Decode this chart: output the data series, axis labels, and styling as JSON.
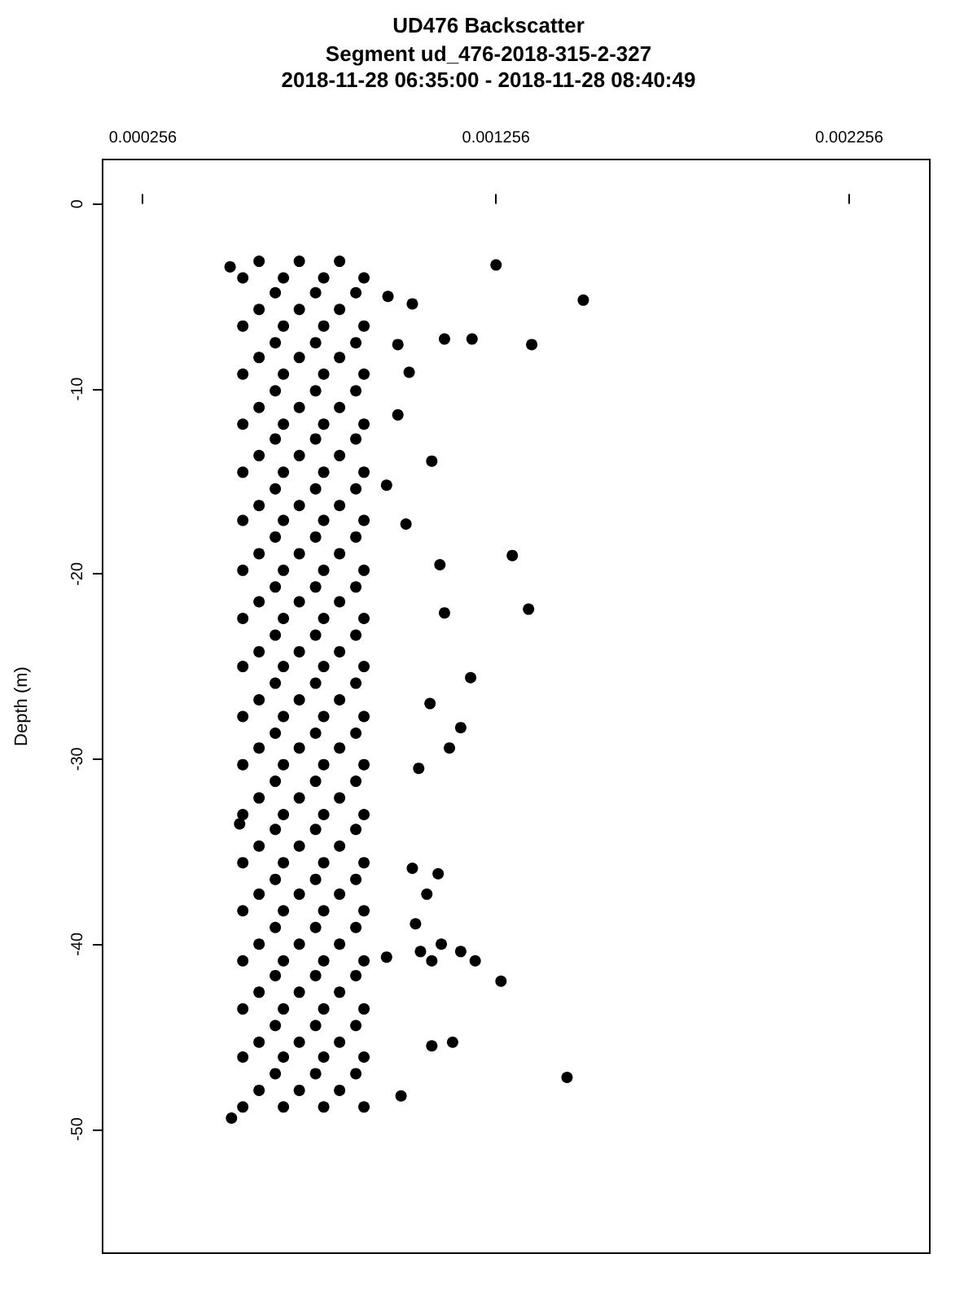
{
  "chart_data": {
    "type": "scatter",
    "title": "UD476 Backscatter",
    "subtitle": "Segment ud_476-2018-315-2-327\n2018-11-28 06:35:00 - 2018-11-28 08:40:49",
    "ylabel": "Depth (m)",
    "xlim": [
      0.000142,
      0.002484
    ],
    "xticks": [
      0.000256,
      0.001256,
      0.002256
    ],
    "ylim": [
      -56.7,
      2.4
    ],
    "yticks": [
      0,
      -10,
      -20,
      -30,
      -40,
      -50
    ],
    "grid": false,
    "marker": "circle",
    "series": [
      {
        "color": "#000000",
        "x": [
          0.000585,
          0.000699,
          0.000813,
          0.000539,
          0.000654,
          0.000768,
          0.000882,
          0.000631,
          0.000745,
          0.000859,
          0.000585,
          0.000699,
          0.000813,
          0.000539,
          0.000654,
          0.000768,
          0.000882,
          0.000631,
          0.000745,
          0.000859,
          0.000585,
          0.000699,
          0.000813,
          0.000539,
          0.000654,
          0.000768,
          0.000882,
          0.000631,
          0.000745,
          0.000859,
          0.000585,
          0.000699,
          0.000813,
          0.000539,
          0.000654,
          0.000768,
          0.000882,
          0.000631,
          0.000745,
          0.000859,
          0.000585,
          0.000699,
          0.000813,
          0.000539,
          0.000654,
          0.000768,
          0.000882,
          0.000631,
          0.000745,
          0.000859,
          0.000585,
          0.000699,
          0.000813,
          0.000539,
          0.000654,
          0.000768,
          0.000882,
          0.000631,
          0.000745,
          0.000859,
          0.000585,
          0.000699,
          0.000813,
          0.000539,
          0.000654,
          0.000768,
          0.000882,
          0.000631,
          0.000745,
          0.000859,
          0.000585,
          0.000699,
          0.000813,
          0.000539,
          0.000654,
          0.000768,
          0.000882,
          0.000631,
          0.000745,
          0.000859,
          0.000585,
          0.000699,
          0.000813,
          0.000539,
          0.000654,
          0.000768,
          0.000882,
          0.000631,
          0.000745,
          0.000859,
          0.000585,
          0.000699,
          0.000813,
          0.000539,
          0.000654,
          0.000768,
          0.000882,
          0.000631,
          0.000745,
          0.000859,
          0.000585,
          0.000699,
          0.000813,
          0.000539,
          0.000654,
          0.000768,
          0.000882,
          0.000631,
          0.000745,
          0.000859,
          0.000585,
          0.000699,
          0.000813,
          0.000539,
          0.000654,
          0.000768,
          0.000882,
          0.000631,
          0.000745,
          0.000859,
          0.000585,
          0.000699,
          0.000813,
          0.000539,
          0.000654,
          0.000768,
          0.000882,
          0.000631,
          0.000745,
          0.000859,
          0.000585,
          0.000699,
          0.000813,
          0.000539,
          0.000654,
          0.000768,
          0.000882,
          0.000631,
          0.000745,
          0.000859,
          0.000585,
          0.000699,
          0.000813,
          0.000539,
          0.000654,
          0.000768,
          0.000882,
          0.000631,
          0.000745,
          0.000859,
          0.000585,
          0.000699,
          0.000813,
          0.000539,
          0.000654,
          0.000768,
          0.000882,
          0.000631,
          0.000745,
          0.000859,
          0.000585,
          0.000699,
          0.000813,
          0.000539,
          0.000654,
          0.000768,
          0.000882,
          0.000631,
          0.000745,
          0.000859,
          0.000585,
          0.000699,
          0.000813,
          0.000539,
          0.000654,
          0.000768,
          0.000882,
          0.000503,
          0.001256,
          0.001503,
          0.00111,
          0.001188,
          0.001357,
          0.00101,
          0.000978,
          0.001074,
          0.000946,
          0.001001,
          0.001097,
          0.001302,
          0.00111,
          0.001348,
          0.001184,
          0.001069,
          0.001156,
          0.001124,
          0.001037,
          0.001019,
          0.001092,
          0.00106,
          0.001028,
          0.001042,
          0.001101,
          0.001156,
          0.001197,
          0.001074,
          0.00127,
          0.000946,
          0.001457,
          0.001133,
          0.001074,
          0.000987,
          0.00053,
          0.000507,
          0.000978,
          0.001019,
          0.00095
        ],
        "values": [
          -3.1,
          -3.1,
          -3.1,
          -4.0,
          -4.0,
          -4.0,
          -4.0,
          -4.8,
          -4.8,
          -4.8,
          -5.7,
          -5.7,
          -5.7,
          -6.6,
          -6.6,
          -6.6,
          -6.6,
          -7.5,
          -7.5,
          -7.5,
          -8.3,
          -8.3,
          -8.3,
          -9.2,
          -9.2,
          -9.2,
          -9.2,
          -10.1,
          -10.1,
          -10.1,
          -11.0,
          -11.0,
          -11.0,
          -11.9,
          -11.9,
          -11.9,
          -11.9,
          -12.7,
          -12.7,
          -12.7,
          -13.6,
          -13.6,
          -13.6,
          -14.5,
          -14.5,
          -14.5,
          -14.5,
          -15.4,
          -15.4,
          -15.4,
          -16.3,
          -16.3,
          -16.3,
          -17.1,
          -17.1,
          -17.1,
          -17.1,
          -18.0,
          -18.0,
          -18.0,
          -18.9,
          -18.9,
          -18.9,
          -19.8,
          -19.8,
          -19.8,
          -19.8,
          -20.7,
          -20.7,
          -20.7,
          -21.5,
          -21.5,
          -21.5,
          -22.4,
          -22.4,
          -22.4,
          -22.4,
          -23.3,
          -23.3,
          -23.3,
          -24.2,
          -24.2,
          -24.2,
          -25.0,
          -25.0,
          -25.0,
          -25.0,
          -25.9,
          -25.9,
          -25.9,
          -26.8,
          -26.8,
          -26.8,
          -27.7,
          -27.7,
          -27.7,
          -27.7,
          -28.6,
          -28.6,
          -28.6,
          -29.4,
          -29.4,
          -29.4,
          -30.3,
          -30.3,
          -30.3,
          -30.3,
          -31.2,
          -31.2,
          -31.2,
          -32.1,
          -32.1,
          -32.1,
          -33.0,
          -33.0,
          -33.0,
          -33.0,
          -33.8,
          -33.8,
          -33.8,
          -34.7,
          -34.7,
          -34.7,
          -35.6,
          -35.6,
          -35.6,
          -35.6,
          -36.5,
          -36.5,
          -36.5,
          -37.3,
          -37.3,
          -37.3,
          -38.2,
          -38.2,
          -38.2,
          -38.2,
          -39.1,
          -39.1,
          -39.1,
          -40.0,
          -40.0,
          -40.0,
          -40.9,
          -40.9,
          -40.9,
          -40.9,
          -41.7,
          -41.7,
          -41.7,
          -42.6,
          -42.6,
          -42.6,
          -43.5,
          -43.5,
          -43.5,
          -43.5,
          -44.4,
          -44.4,
          -44.4,
          -45.3,
          -45.3,
          -45.3,
          -46.1,
          -46.1,
          -46.1,
          -46.1,
          -47.0,
          -47.0,
          -47.0,
          -47.9,
          -47.9,
          -47.9,
          -48.8,
          -48.8,
          -48.8,
          -48.8,
          -3.4,
          -3.3,
          -5.2,
          -7.3,
          -7.3,
          -7.6,
          -9.1,
          -11.4,
          -13.9,
          -15.2,
          -17.3,
          -19.5,
          -19.0,
          -22.1,
          -21.9,
          -25.6,
          -27.0,
          -28.3,
          -29.4,
          -30.5,
          -35.9,
          -36.2,
          -37.3,
          -38.9,
          -40.4,
          -40.0,
          -40.4,
          -40.9,
          -40.9,
          -42.0,
          -40.7,
          -47.2,
          -45.3,
          -45.5,
          -48.2,
          -33.5,
          -49.4,
          -7.6,
          -5.4,
          -5.0
        ]
      }
    ]
  }
}
